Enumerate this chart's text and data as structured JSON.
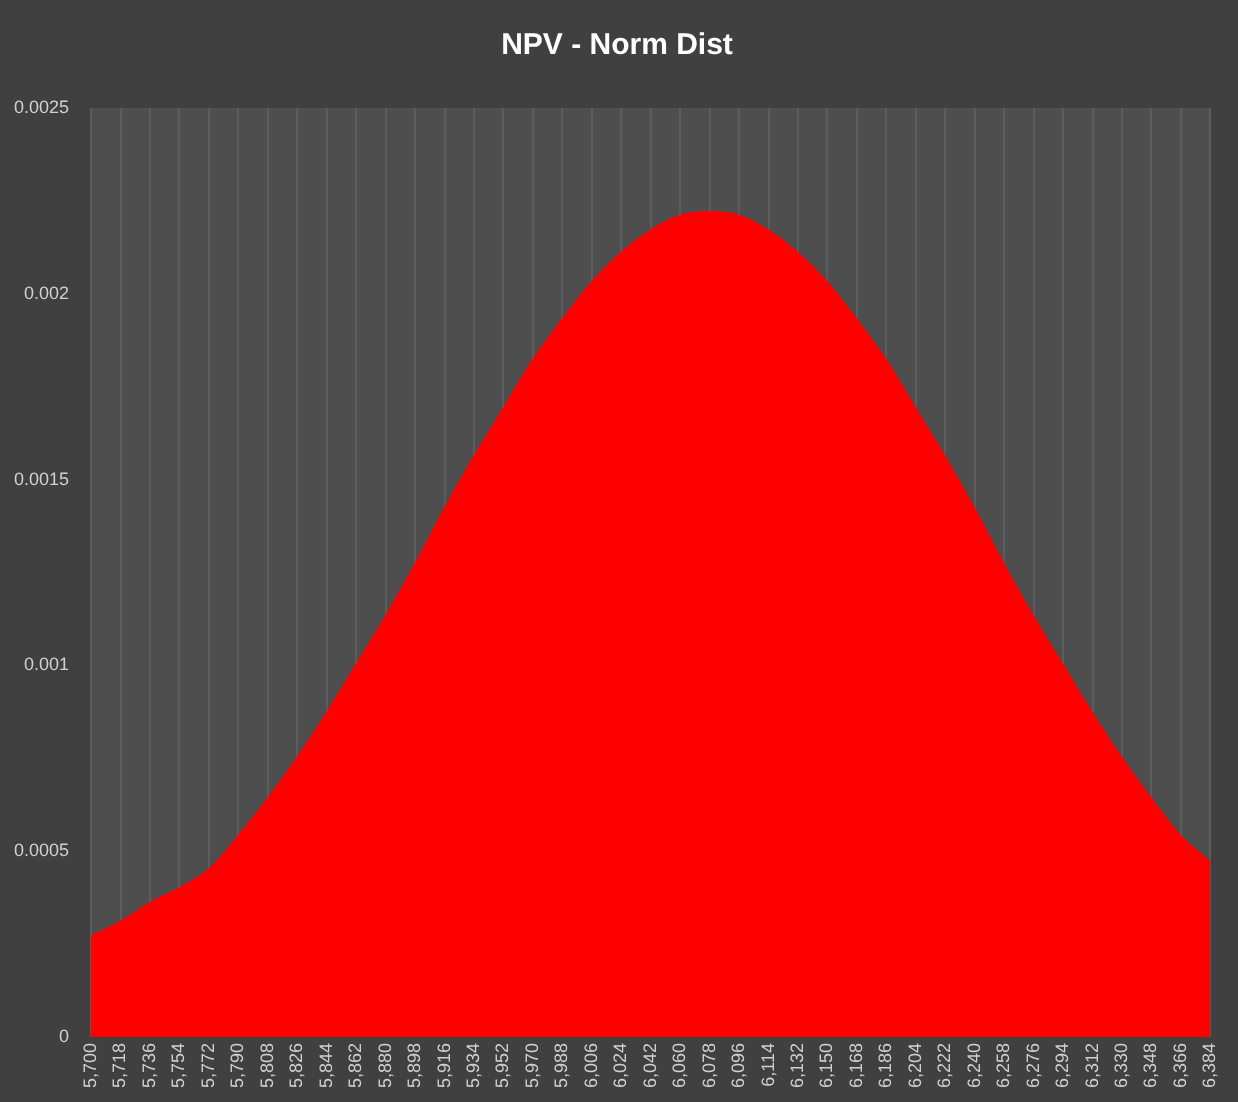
{
  "chart_data": {
    "type": "area",
    "title": "NPV - Norm Dist",
    "categories": [
      "5,700",
      "5,718",
      "5,736",
      "5,754",
      "5,772",
      "5,790",
      "5,808",
      "5,826",
      "5,844",
      "5,862",
      "5,880",
      "5,898",
      "5,916",
      "5,934",
      "5,952",
      "5,970",
      "5,988",
      "6,006",
      "6,024",
      "6,042",
      "6,060",
      "6,078",
      "6,096",
      "6,114",
      "6,132",
      "6,150",
      "6,168",
      "6,186",
      "6,204",
      "6,222",
      "6,240",
      "6,258",
      "6,276",
      "6,294",
      "6,312",
      "6,330",
      "6,348",
      "6,366",
      "6,384"
    ],
    "values": [
      0.00027,
      0.00031,
      0.00036,
      0.0004,
      0.00045,
      0.00054,
      0.00064,
      0.00075,
      0.00087,
      0.001,
      0.00113,
      0.00127,
      0.00142,
      0.00156,
      0.00169,
      0.00182,
      0.00193,
      0.00203,
      0.00211,
      0.00217,
      0.00221,
      0.00222,
      0.00221,
      0.00217,
      0.00211,
      0.00203,
      0.00193,
      0.00182,
      0.00169,
      0.00156,
      0.00142,
      0.00127,
      0.00113,
      0.001,
      0.00087,
      0.00075,
      0.00064,
      0.00054,
      0.00047
    ],
    "color": "#ff0000",
    "ylim": [
      0,
      0.0025
    ],
    "yticks": [
      0,
      0.0005,
      0.001,
      0.0015,
      0.002,
      0.0025
    ],
    "grid": "x"
  }
}
